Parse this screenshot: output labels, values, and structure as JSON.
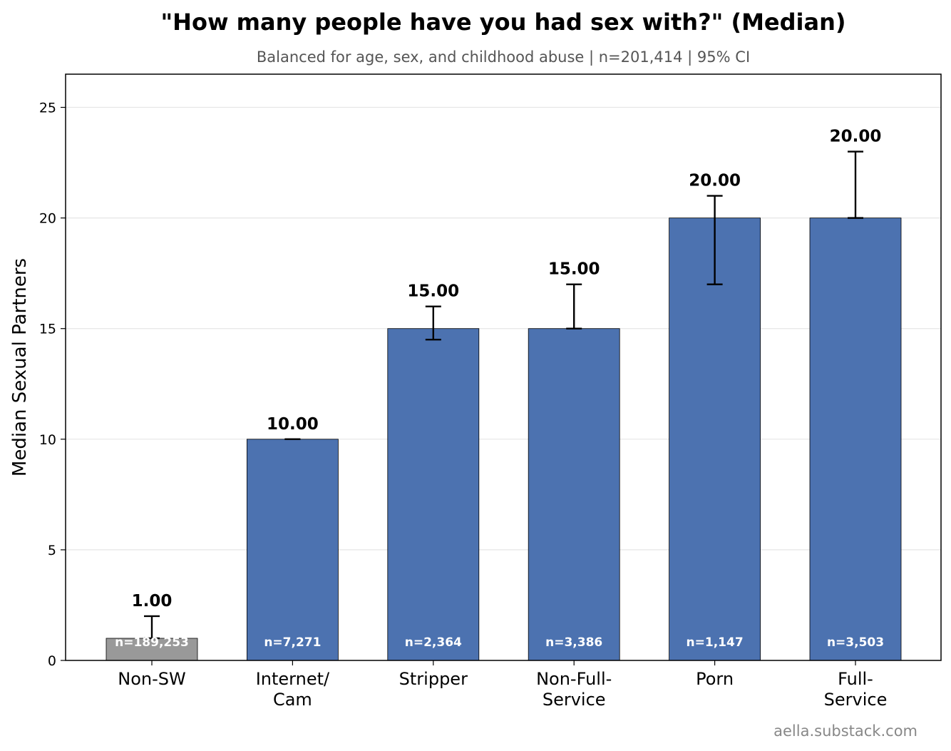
{
  "chart_data": {
    "type": "bar",
    "title": "\"How many people have you had sex with?\" (Median)",
    "subtitle": "Balanced for age, sex, and childhood abuse  |  n=201,414  |  95% CI",
    "ylabel": "Median Sexual Partners",
    "xlabel": "",
    "ylim": [
      0,
      26.5
    ],
    "yticks": [
      0,
      5,
      10,
      15,
      20,
      25
    ],
    "grid": "horizontal",
    "categories": [
      {
        "label_lines": [
          "Non-SW"
        ],
        "value": 1.0,
        "value_label": "1.00",
        "ci": [
          1,
          2
        ],
        "n_label": "n=189,253",
        "color": "#999999"
      },
      {
        "label_lines": [
          "Internet/",
          "Cam"
        ],
        "value": 10.0,
        "value_label": "10.00",
        "ci": [
          10,
          10
        ],
        "n_label": "n=7,271",
        "color": "#4c72b0"
      },
      {
        "label_lines": [
          "Stripper"
        ],
        "value": 15.0,
        "value_label": "15.00",
        "ci": [
          14.5,
          16
        ],
        "n_label": "n=2,364",
        "color": "#4c72b0"
      },
      {
        "label_lines": [
          "Non-Full-",
          "Service"
        ],
        "value": 15.0,
        "value_label": "15.00",
        "ci": [
          15,
          17
        ],
        "n_label": "n=3,386",
        "color": "#4c72b0"
      },
      {
        "label_lines": [
          "Porn"
        ],
        "value": 20.0,
        "value_label": "20.00",
        "ci": [
          17,
          21
        ],
        "n_label": "n=1,147",
        "color": "#4c72b0"
      },
      {
        "label_lines": [
          "Full-",
          "Service"
        ],
        "value": 20.0,
        "value_label": "20.00",
        "ci": [
          20,
          23
        ],
        "n_label": "n=3,503",
        "color": "#4c72b0"
      }
    ]
  },
  "credit": "aella.substack.com"
}
